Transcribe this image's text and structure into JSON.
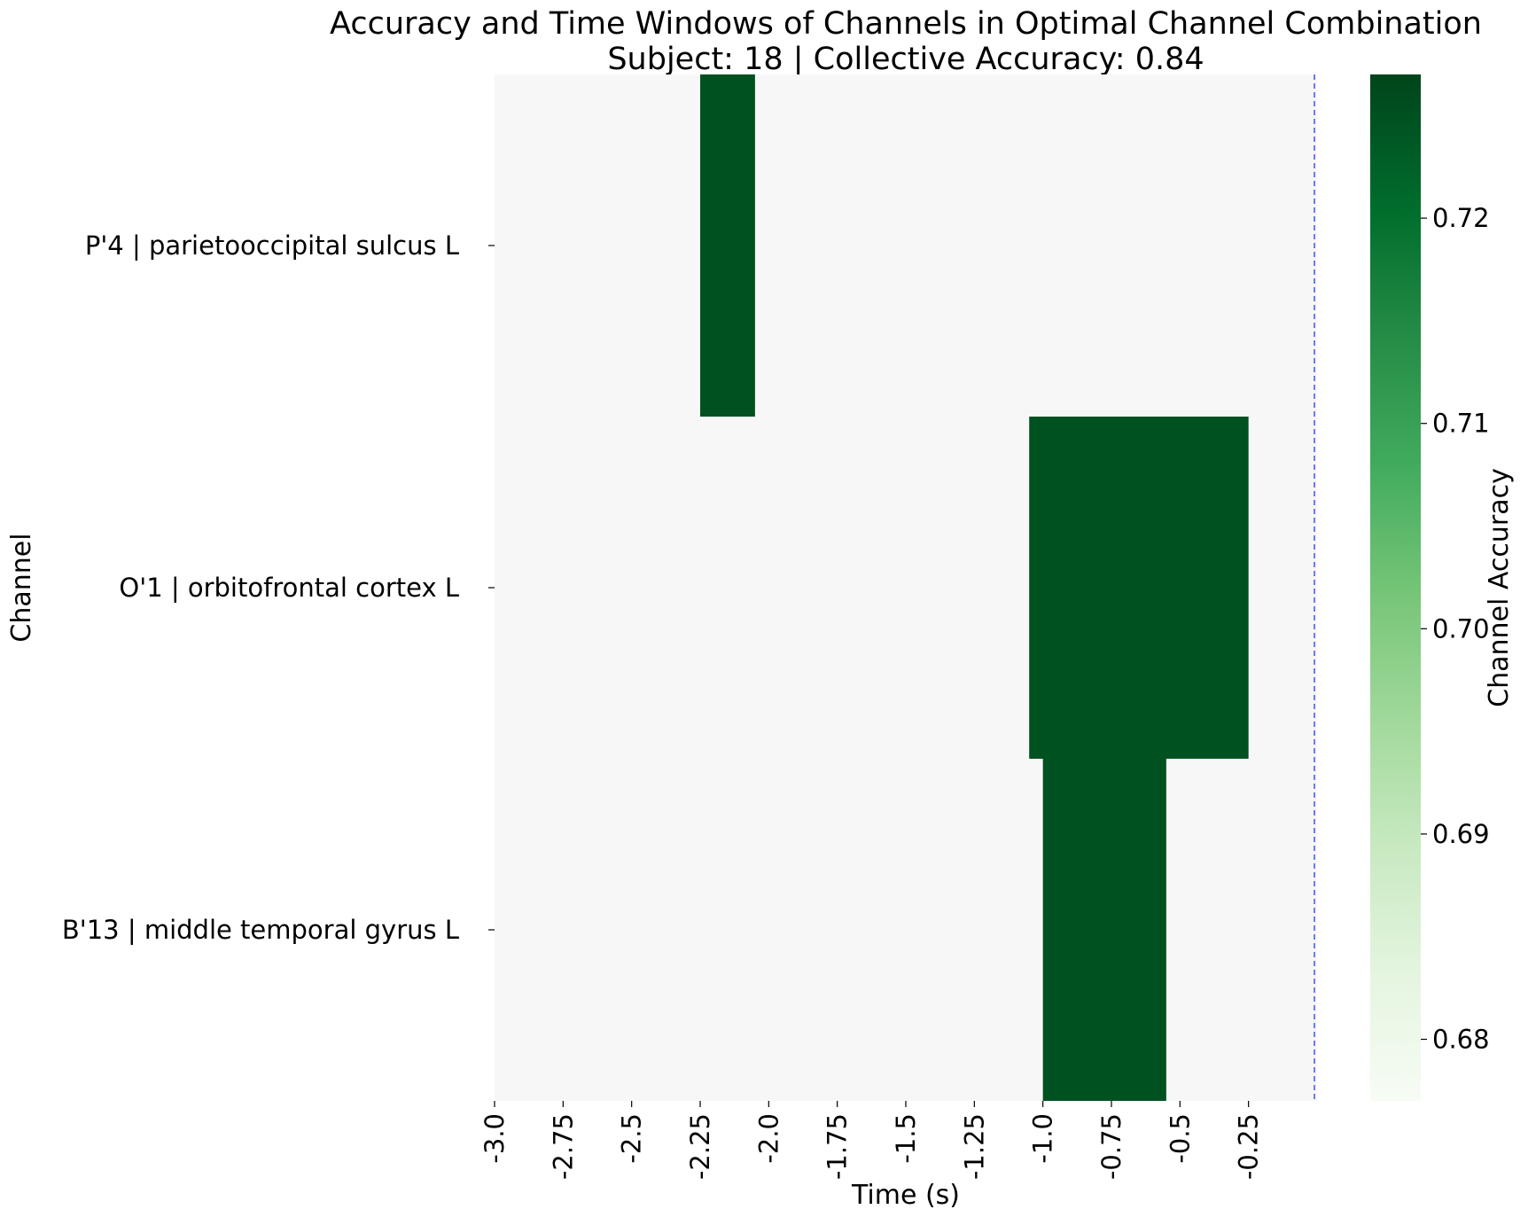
{
  "chart_data": {
    "type": "heatmap",
    "title_line1": "Accuracy and Time Windows of Channels in Optimal Channel Combination",
    "title_line2": "Subject: 18 | Collective Accuracy: 0.84",
    "xlabel": "Time (s)",
    "ylabel": "Channel",
    "colorbar_label": "Channel Accuracy",
    "x_range": [
      -3.0,
      0.0
    ],
    "x_ticks": [
      -3.0,
      -2.75,
      -2.5,
      -2.25,
      -2.0,
      -1.75,
      -1.5,
      -1.25,
      -1.0,
      -0.75,
      -0.5,
      -0.25
    ],
    "x_tick_labels": [
      "-3.0",
      "-2.75",
      "-2.5",
      "-2.25",
      "-2.0",
      "-1.75",
      "-1.5",
      "-1.25",
      "-1.0",
      "-0.75",
      "-0.5",
      "-0.25"
    ],
    "channels": [
      "P'4 | parietooccipital sulcus L",
      "O'1 | orbitofrontal cortex L",
      "B'13 | middle temporal gyrus L"
    ],
    "windows": [
      {
        "channel_index": 0,
        "start": -2.25,
        "end": -2.05,
        "accuracy": 0.725
      },
      {
        "channel_index": 1,
        "start": -1.05,
        "end": -0.25,
        "accuracy": 0.725
      },
      {
        "channel_index": 2,
        "start": -1.0,
        "end": -0.55,
        "accuracy": 0.725
      }
    ],
    "reference_line_x": 0.0,
    "colorbar_range": [
      0.677,
      0.727
    ],
    "colorbar_ticks": [
      0.68,
      0.69,
      0.7,
      0.71,
      0.72
    ],
    "colorbar_tick_labels": [
      "0.68",
      "0.69",
      "0.70",
      "0.71",
      "0.72"
    ],
    "colors": {
      "background_cell": "#f7f7f7",
      "colormap_low": "#f7fcf5",
      "colormap_high": "#00441b",
      "reference_line": "#4a5cff"
    },
    "colormap": "Greens"
  }
}
